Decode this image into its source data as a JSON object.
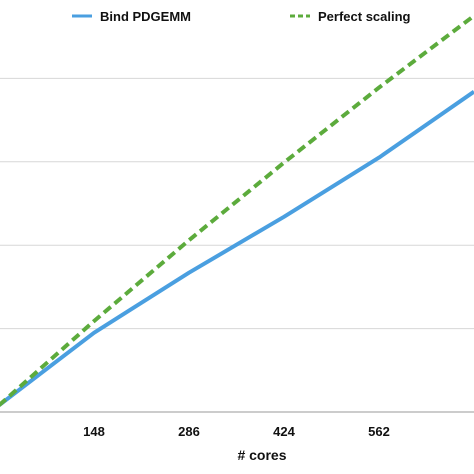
{
  "chart_data": {
    "type": "line",
    "title": "",
    "xlabel": "# cores",
    "ylabel": "",
    "x_ticks": [
      148,
      286,
      424,
      562
    ],
    "xlim": [
      10,
      700
    ],
    "ylim": [
      0,
      4.7
    ],
    "y_gridlines": [
      0,
      1,
      2,
      3,
      4
    ],
    "grid": true,
    "legend": "top",
    "series": [
      {
        "name": "Bind PDGEMM",
        "color": "#4a9fe0",
        "dash": "solid",
        "points": [
          [
            10,
            0.08
          ],
          [
            148,
            0.95
          ],
          [
            286,
            1.67
          ],
          [
            424,
            2.34
          ],
          [
            562,
            3.05
          ],
          [
            700,
            3.84
          ]
        ]
      },
      {
        "name": "Perfect scaling",
        "color": "#5cab3c",
        "dash": "dashed",
        "points": [
          [
            10,
            0.08
          ],
          [
            148,
            1.09
          ],
          [
            286,
            2.06
          ],
          [
            424,
            2.99
          ],
          [
            562,
            3.89
          ],
          [
            700,
            4.75
          ]
        ]
      }
    ]
  }
}
